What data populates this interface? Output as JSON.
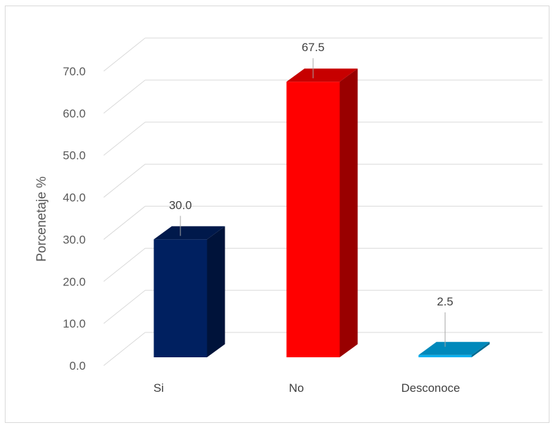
{
  "chart_data": {
    "type": "bar",
    "style": "3d-column",
    "categories": [
      "Si",
      "No",
      "Desconoce"
    ],
    "values": [
      30.0,
      67.5,
      2.5
    ],
    "value_labels": [
      "30.0",
      "67.5",
      "2.5"
    ],
    "colors": [
      "#002060",
      "#ff0000",
      "#00b0f0"
    ],
    "ylabel": "Porcenetaje %",
    "ylim": [
      0,
      70
    ],
    "yticks": [
      "0.0",
      "10.0",
      "20.0",
      "30.0",
      "40.0",
      "50.0",
      "60.0",
      "70.0"
    ],
    "grid": true,
    "legend": "none"
  }
}
